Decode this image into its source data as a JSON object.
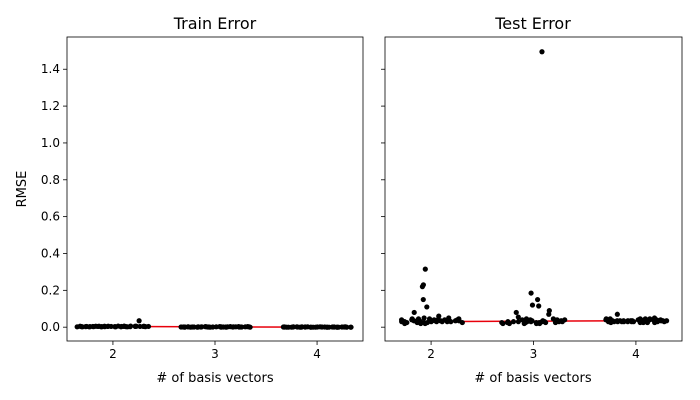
{
  "chart_data": [
    {
      "type": "scatter",
      "title": "Train Error",
      "xlabel": "# of basis vectors",
      "ylabel": "RMSE",
      "xlim": [
        1.55,
        4.45
      ],
      "ylim": [
        -0.075,
        1.575
      ],
      "xticks": [
        "2",
        "3",
        "4"
      ],
      "yticks": [
        "0.0",
        "0.2",
        "0.4",
        "0.6",
        "0.8",
        "1.0",
        "1.2",
        "1.4"
      ],
      "grid": false,
      "groups": [
        {
          "x_category": "2",
          "values": [
            0.004,
            0.003,
            0.005,
            0.002,
            0.004,
            0.006,
            0.003,
            0.002,
            0.005,
            0.004,
            0.003,
            0.006,
            0.002,
            0.004,
            0.005,
            0.003,
            0.004,
            0.002,
            0.005,
            0.003,
            0.004,
            0.006,
            0.003,
            0.005,
            0.002,
            0.004,
            0.003,
            0.005,
            0.004,
            0.035,
            0.003,
            0.004,
            0.002,
            0.005,
            0.003,
            0.004,
            0.005,
            0.003,
            0.002,
            0.004
          ]
        },
        {
          "x_category": "3",
          "values": [
            0.001,
            0.002,
            0.0,
            0.003,
            0.001,
            0.002,
            0.001,
            0.0,
            0.002,
            0.001,
            0.003,
            0.001,
            0.002,
            0.0,
            0.001,
            0.002,
            0.001,
            0.003,
            0.002,
            0.001,
            0.0,
            0.002,
            0.001,
            0.002,
            0.001,
            0.003,
            0.0,
            0.001,
            0.002,
            0.001,
            0.002,
            0.001,
            0.0,
            0.002,
            0.001,
            0.003,
            0.001,
            0.002,
            0.001,
            0.0
          ]
        },
        {
          "x_category": "4",
          "values": [
            0.0,
            0.001,
            0.0,
            0.002,
            0.0,
            0.001,
            0.0,
            0.001,
            0.002,
            0.0,
            0.001,
            0.0,
            0.001,
            0.0,
            0.002,
            0.001,
            0.0,
            0.001,
            0.0,
            0.001,
            0.002,
            0.0,
            0.001,
            0.0,
            0.001,
            0.0,
            0.002,
            0.001,
            0.0,
            0.001,
            0.0,
            0.001,
            0.0,
            0.002,
            0.001,
            0.0,
            0.001,
            0.0,
            0.001,
            0.0
          ]
        }
      ],
      "median_line": {
        "color": "#e8000b",
        "x": [
          2,
          3,
          4
        ],
        "values": [
          0.004,
          0.001,
          0.0
        ]
      }
    },
    {
      "type": "scatter",
      "title": "Test Error",
      "xlabel": "# of basis vectors",
      "ylabel": "",
      "xlim": [
        1.55,
        4.45
      ],
      "ylim": [
        -0.075,
        1.575
      ],
      "xticks": [
        "2",
        "3",
        "4"
      ],
      "yticks": [
        "0.0",
        "0.2",
        "0.4",
        "0.6",
        "0.8",
        "1.0",
        "1.2",
        "1.4"
      ],
      "grid": false,
      "groups": [
        {
          "x_category": "2",
          "values": [
            0.045,
            0.03,
            0.025,
            0.04,
            0.02,
            0.035,
            0.05,
            0.03,
            0.025,
            0.04,
            0.03,
            0.06,
            0.02,
            0.035,
            0.045,
            0.03,
            0.025,
            0.04,
            0.08,
            0.03,
            0.035,
            0.05,
            0.045,
            0.03,
            0.04,
            0.11,
            0.15,
            0.23,
            0.315,
            0.22,
            0.025,
            0.035,
            0.03,
            0.04,
            0.02,
            0.045,
            0.03,
            0.035,
            0.04,
            0.025
          ]
        },
        {
          "x_category": "3",
          "values": [
            0.035,
            0.025,
            0.03,
            0.02,
            0.04,
            0.025,
            0.03,
            0.02,
            0.045,
            0.03,
            0.025,
            0.035,
            0.02,
            0.03,
            0.04,
            0.025,
            0.03,
            0.07,
            0.055,
            0.09,
            0.08,
            0.115,
            0.12,
            0.15,
            0.185,
            0.045,
            0.03,
            0.025,
            0.02,
            0.035,
            0.03,
            0.04,
            0.025,
            0.03,
            1.495,
            0.035,
            0.02,
            0.03,
            0.025,
            0.04
          ]
        },
        {
          "x_category": "4",
          "values": [
            0.03,
            0.04,
            0.035,
            0.025,
            0.03,
            0.045,
            0.035,
            0.04,
            0.03,
            0.025,
            0.035,
            0.045,
            0.03,
            0.04,
            0.035,
            0.025,
            0.03,
            0.04,
            0.035,
            0.045,
            0.03,
            0.04,
            0.07,
            0.05,
            0.035,
            0.025,
            0.03,
            0.04,
            0.035,
            0.03,
            0.045,
            0.035,
            0.025,
            0.04,
            0.03,
            0.035,
            0.045,
            0.03,
            0.04,
            0.035
          ]
        }
      ],
      "median_line": {
        "color": "#e8000b",
        "x": [
          2,
          3,
          4
        ],
        "values": [
          0.03,
          0.03,
          0.035
        ]
      }
    }
  ]
}
